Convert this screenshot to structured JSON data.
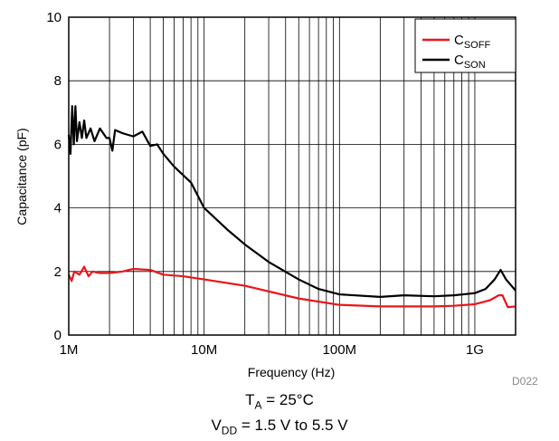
{
  "chart_data": {
    "type": "line",
    "x_scale": "log",
    "xlabel": "Frequency (Hz)",
    "ylabel": "Capacitance (pF)",
    "xlim": [
      1000000,
      2000000000
    ],
    "ylim": [
      0,
      10
    ],
    "x_ticks": [
      {
        "value": 1000000,
        "label": "1M"
      },
      {
        "value": 10000000,
        "label": "10M"
      },
      {
        "value": 100000000,
        "label": "100M"
      },
      {
        "value": 1000000000,
        "label": "1G"
      }
    ],
    "y_ticks": [
      {
        "value": 0,
        "label": "0"
      },
      {
        "value": 2,
        "label": "2"
      },
      {
        "value": 4,
        "label": "4"
      },
      {
        "value": 6,
        "label": "6"
      },
      {
        "value": 8,
        "label": "8"
      },
      {
        "value": 10,
        "label": "10"
      }
    ],
    "grid": true,
    "legend_position": "top-right",
    "series": [
      {
        "name": "C_SOFF",
        "label_main": "C",
        "label_sub": "SOFF",
        "color": "#e8161b",
        "points": [
          [
            1000000,
            1.9
          ],
          [
            1050000,
            1.7
          ],
          [
            1100000,
            2.0
          ],
          [
            1200000,
            1.9
          ],
          [
            1300000,
            2.15
          ],
          [
            1400000,
            1.85
          ],
          [
            1500000,
            2.0
          ],
          [
            1700000,
            1.95
          ],
          [
            2000000,
            1.95
          ],
          [
            2500000,
            2.0
          ],
          [
            3000000,
            2.08
          ],
          [
            4000000,
            2.05
          ],
          [
            5000000,
            1.9
          ],
          [
            7000000,
            1.85
          ],
          [
            10000000,
            1.75
          ],
          [
            20000000,
            1.55
          ],
          [
            50000000,
            1.15
          ],
          [
            100000000,
            0.95
          ],
          [
            200000000,
            0.9
          ],
          [
            300000000,
            0.9
          ],
          [
            500000000,
            0.9
          ],
          [
            700000000,
            0.92
          ],
          [
            1000000000,
            0.97
          ],
          [
            1300000000,
            1.1
          ],
          [
            1500000000,
            1.25
          ],
          [
            1600000000,
            1.25
          ],
          [
            1750000000,
            0.88
          ],
          [
            2000000000,
            0.9
          ]
        ]
      },
      {
        "name": "C_SON",
        "label_main": "C",
        "label_sub": "SON",
        "color": "#000000",
        "points": [
          [
            1000000,
            6.3
          ],
          [
            1030000,
            5.7
          ],
          [
            1060000,
            7.2
          ],
          [
            1090000,
            6.0
          ],
          [
            1120000,
            7.2
          ],
          [
            1150000,
            6.1
          ],
          [
            1200000,
            6.7
          ],
          [
            1250000,
            6.2
          ],
          [
            1300000,
            6.75
          ],
          [
            1350000,
            6.2
          ],
          [
            1450000,
            6.5
          ],
          [
            1550000,
            6.1
          ],
          [
            1700000,
            6.5
          ],
          [
            1900000,
            6.2
          ],
          [
            2000000,
            6.2
          ],
          [
            2100000,
            5.8
          ],
          [
            2200000,
            6.45
          ],
          [
            2500000,
            6.35
          ],
          [
            3000000,
            6.25
          ],
          [
            3500000,
            6.4
          ],
          [
            4000000,
            5.95
          ],
          [
            4500000,
            6.0
          ],
          [
            5000000,
            5.7
          ],
          [
            6000000,
            5.3
          ],
          [
            8000000,
            4.8
          ],
          [
            10000000,
            4.0
          ],
          [
            15000000,
            3.3
          ],
          [
            20000000,
            2.85
          ],
          [
            30000000,
            2.3
          ],
          [
            50000000,
            1.75
          ],
          [
            70000000,
            1.45
          ],
          [
            100000000,
            1.28
          ],
          [
            200000000,
            1.2
          ],
          [
            300000000,
            1.25
          ],
          [
            500000000,
            1.22
          ],
          [
            700000000,
            1.25
          ],
          [
            1000000000,
            1.32
          ],
          [
            1200000000,
            1.45
          ],
          [
            1400000000,
            1.75
          ],
          [
            1550000000,
            2.05
          ],
          [
            1700000000,
            1.75
          ],
          [
            2000000000,
            1.4
          ]
        ]
      }
    ]
  },
  "figure_code": "D022",
  "conditions": {
    "ta_main": "T",
    "ta_sub": "A",
    "ta_value": " = 25°C",
    "vdd_main": "V",
    "vdd_sub": "DD",
    "vdd_value": " = 1.5 V to 5.5 V"
  }
}
